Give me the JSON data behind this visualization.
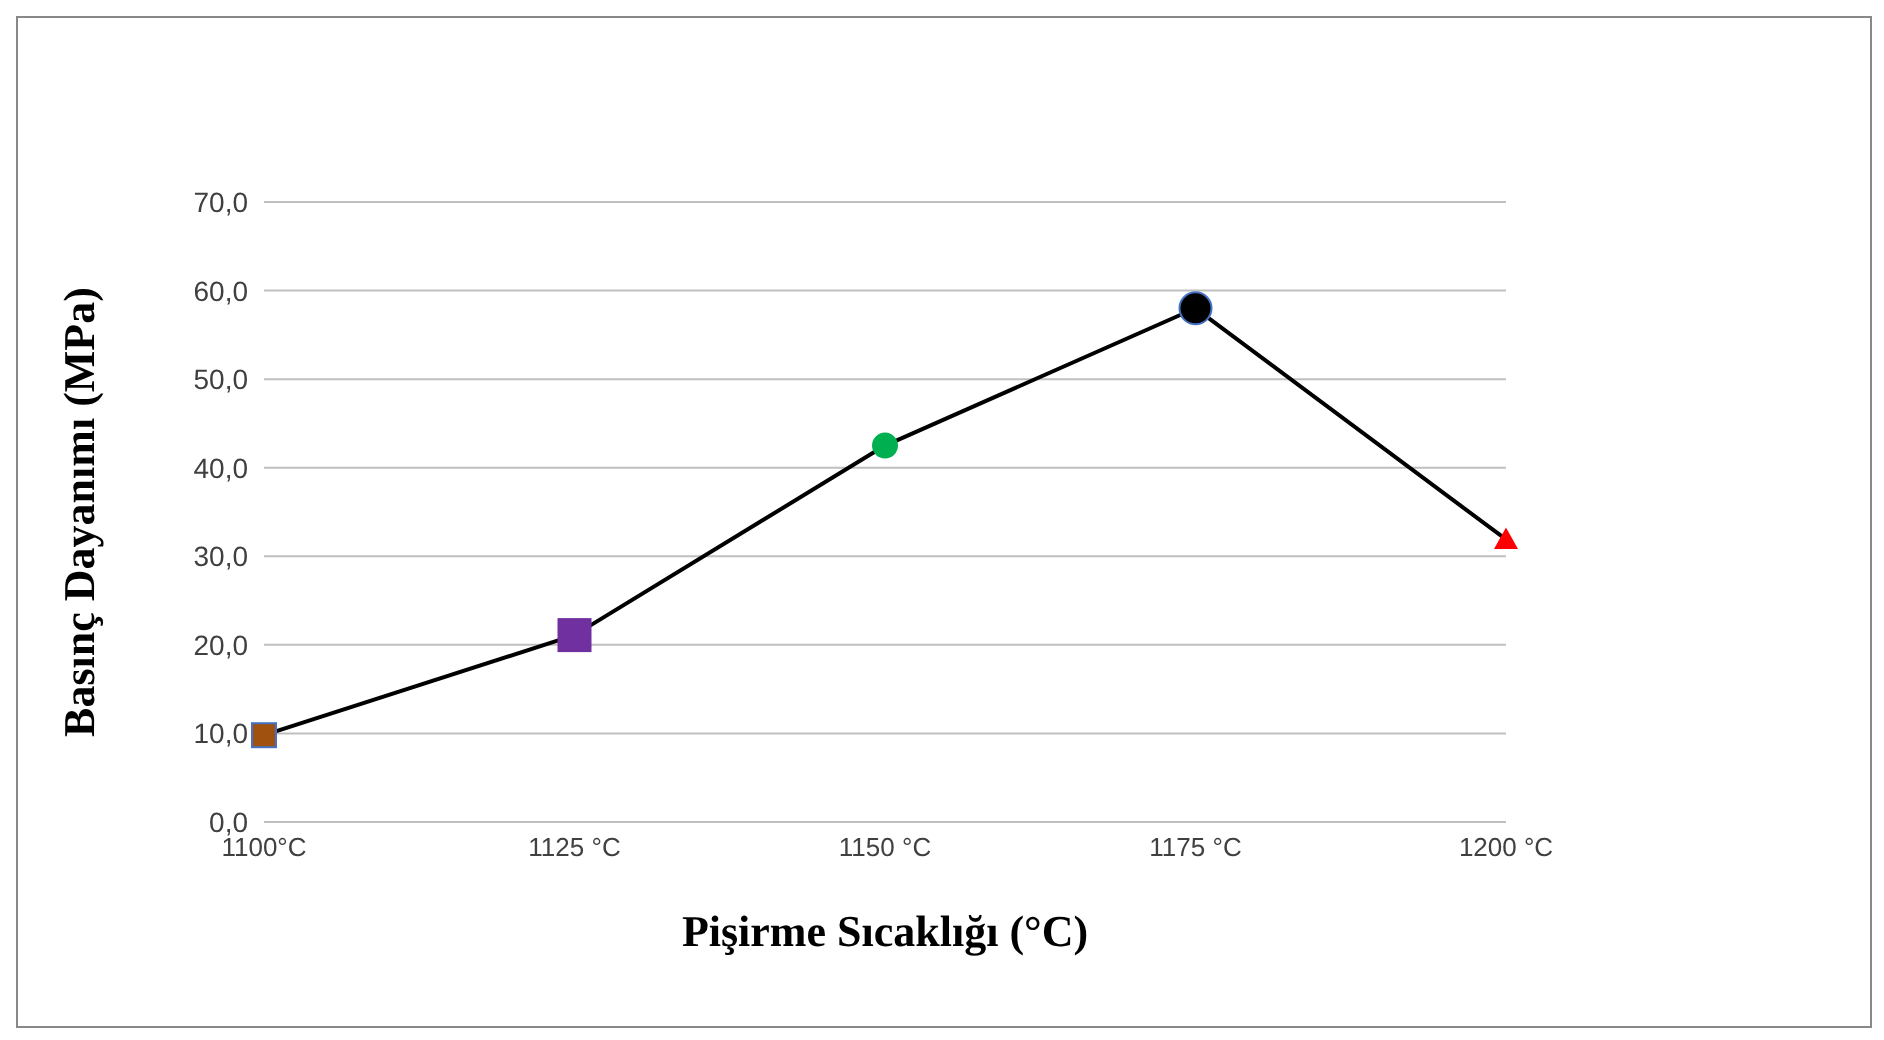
{
  "chart_data": {
    "type": "line",
    "xlabel": "Pişirme Sıcaklığı  (°C)",
    "ylabel": "Basınç Dayanımı (MPa)",
    "categories": [
      "1100°C",
      "1125 °C",
      "1150 °C",
      "1175 °C",
      "1200 °C"
    ],
    "series": [
      {
        "color": "#000000",
        "colors": [
          "#a0500f",
          "#7030a0",
          "#00b050",
          "#000000",
          "#ff0000"
        ],
        "values": [
          9.8,
          21.1,
          42.5,
          58.0,
          31.9
        ]
      }
    ],
    "marker": [
      "square",
      "square",
      "circle",
      "circle",
      "triangle"
    ],
    "ylim": [
      0,
      70
    ],
    "yticks": [
      {
        "value": 0,
        "label": "0,0"
      },
      {
        "value": 10,
        "label": "10,0"
      },
      {
        "value": 20,
        "label": "20,0"
      },
      {
        "value": 30,
        "label": "30,0"
      },
      {
        "value": 40,
        "label": "40,0"
      },
      {
        "value": 50,
        "label": "50,0"
      },
      {
        "value": 60,
        "label": "60,0"
      },
      {
        "value": 70,
        "label": "70,0"
      }
    ],
    "grid": "y",
    "line_style": "solid",
    "legend": false
  }
}
